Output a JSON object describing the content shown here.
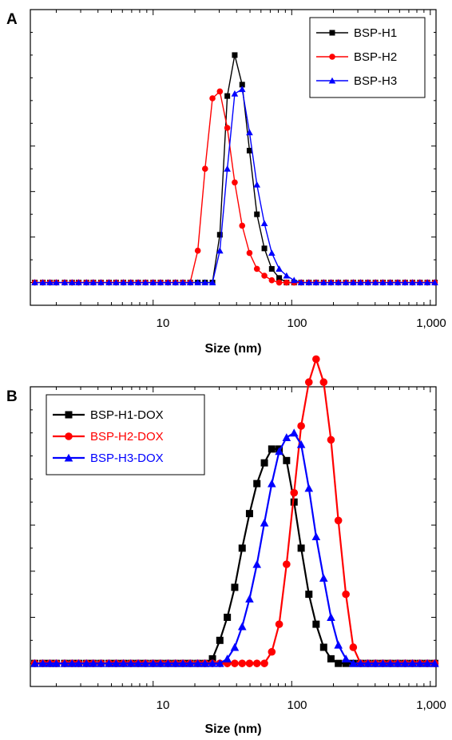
{
  "chart_data": [
    {
      "panel": "A",
      "type": "line",
      "xlabel": "Size (nm)",
      "ylabel": "",
      "xscale": "log",
      "xlim": [
        1.3,
        1100
      ],
      "xticks": [
        {
          "value": 10,
          "label": "10"
        },
        {
          "value": 100,
          "label": "100"
        },
        {
          "value": 1000,
          "label": "1,000"
        }
      ],
      "ylim": [
        -0.1,
        1.2
      ],
      "legend_position": "top-right",
      "legend_framed": true,
      "grid": false,
      "series": [
        {
          "name": "BSP-H1",
          "color": "#000000",
          "marker": "square",
          "x": [
            1.4,
            1.6,
            1.8,
            2.0,
            2.3,
            2.6,
            2.9,
            3.3,
            3.7,
            4.2,
            4.8,
            5.4,
            6.1,
            6.9,
            7.8,
            8.8,
            10,
            11.3,
            12.8,
            14.5,
            16.4,
            18.5,
            21,
            23.7,
            26.8,
            30.3,
            34.3,
            38.8,
            43.9,
            49.6,
            56.1,
            63.5,
            71.8,
            81.2,
            91.8,
            104,
            117,
            133,
            150,
            170,
            192,
            217,
            246,
            278,
            314,
            355,
            402,
            455,
            514,
            582,
            658,
            744,
            842,
            952,
            1077
          ],
          "values": [
            0,
            0,
            0,
            0,
            0,
            0,
            0,
            0,
            0,
            0,
            0,
            0,
            0,
            0,
            0,
            0,
            0,
            0,
            0,
            0,
            0,
            0,
            0,
            0,
            0,
            0.21,
            0.82,
            1.0,
            0.87,
            0.58,
            0.3,
            0.15,
            0.06,
            0.02,
            0,
            0,
            0,
            0,
            0,
            0,
            0,
            0,
            0,
            0,
            0,
            0,
            0,
            0,
            0,
            0,
            0,
            0,
            0,
            0,
            0
          ]
        },
        {
          "name": "BSP-H2",
          "color": "#ff0000",
          "marker": "circle",
          "x": [
            1.4,
            1.6,
            1.8,
            2.0,
            2.3,
            2.6,
            2.9,
            3.3,
            3.7,
            4.2,
            4.8,
            5.4,
            6.1,
            6.9,
            7.8,
            8.8,
            10,
            11.3,
            12.8,
            14.5,
            16.4,
            18.5,
            21,
            23.7,
            26.8,
            30.3,
            34.3,
            38.8,
            43.9,
            49.6,
            56.1,
            63.5,
            71.8,
            81.2,
            91.8,
            104,
            117,
            133,
            150,
            170,
            192,
            217,
            246,
            278,
            314,
            355,
            402,
            455,
            514,
            582,
            658,
            744,
            842,
            952,
            1077
          ],
          "values": [
            0,
            0,
            0,
            0,
            0,
            0,
            0,
            0,
            0,
            0,
            0,
            0,
            0,
            0,
            0,
            0,
            0,
            0,
            0,
            0,
            0,
            0,
            0.14,
            0.5,
            0.81,
            0.84,
            0.68,
            0.44,
            0.25,
            0.13,
            0.06,
            0.03,
            0.01,
            0,
            0,
            0,
            0,
            0,
            0,
            0,
            0,
            0,
            0,
            0,
            0,
            0,
            0,
            0,
            0,
            0,
            0,
            0,
            0,
            0,
            0
          ]
        },
        {
          "name": "BSP-H3",
          "color": "#0000ff",
          "marker": "triangle",
          "x": [
            1.4,
            1.6,
            1.8,
            2.0,
            2.3,
            2.6,
            2.9,
            3.3,
            3.7,
            4.2,
            4.8,
            5.4,
            6.1,
            6.9,
            7.8,
            8.8,
            10,
            11.3,
            12.8,
            14.5,
            16.4,
            18.5,
            21,
            23.7,
            26.8,
            30.3,
            34.3,
            38.8,
            43.9,
            49.6,
            56.1,
            63.5,
            71.8,
            81.2,
            91.8,
            104,
            117,
            133,
            150,
            170,
            192,
            217,
            246,
            278,
            314,
            355,
            402,
            455,
            514,
            582,
            658,
            744,
            842,
            952,
            1077
          ],
          "values": [
            0,
            0,
            0,
            0,
            0,
            0,
            0,
            0,
            0,
            0,
            0,
            0,
            0,
            0,
            0,
            0,
            0,
            0,
            0,
            0,
            0,
            0,
            0,
            0,
            0,
            0.14,
            0.5,
            0.83,
            0.85,
            0.66,
            0.43,
            0.26,
            0.13,
            0.06,
            0.03,
            0.01,
            0,
            0,
            0,
            0,
            0,
            0,
            0,
            0,
            0,
            0,
            0,
            0,
            0,
            0,
            0,
            0,
            0,
            0,
            0
          ]
        }
      ]
    },
    {
      "panel": "B",
      "type": "line",
      "xlabel": "Size (nm)",
      "ylabel": "",
      "xscale": "log",
      "xlim": [
        1.3,
        1100
      ],
      "xticks": [
        {
          "value": 10,
          "label": "10"
        },
        {
          "value": 100,
          "label": "100"
        },
        {
          "value": 1000,
          "label": "1,000"
        }
      ],
      "ylim": [
        -0.1,
        1.2
      ],
      "legend_position": "top-left",
      "legend_framed": true,
      "grid": false,
      "series": [
        {
          "name": "BSP-H1-DOX",
          "color": "#000000",
          "marker": "square",
          "x": [
            1.4,
            1.6,
            1.8,
            2.0,
            2.3,
            2.6,
            2.9,
            3.3,
            3.7,
            4.2,
            4.8,
            5.4,
            6.1,
            6.9,
            7.8,
            8.8,
            10,
            11.3,
            12.8,
            14.5,
            16.4,
            18.5,
            21,
            23.7,
            26.8,
            30.3,
            34.3,
            38.8,
            43.9,
            49.6,
            56.1,
            63.5,
            71.8,
            81.2,
            91.8,
            104,
            117,
            133,
            150,
            170,
            192,
            217,
            246,
            278,
            314,
            355,
            402,
            455,
            514,
            582,
            658,
            744,
            842,
            952,
            1077
          ],
          "values": [
            0,
            0,
            0,
            0,
            0,
            0,
            0,
            0,
            0,
            0,
            0,
            0,
            0,
            0,
            0,
            0,
            0,
            0,
            0,
            0,
            0,
            0,
            0,
            0,
            0.02,
            0.1,
            0.2,
            0.33,
            0.5,
            0.65,
            0.78,
            0.87,
            0.93,
            0.93,
            0.88,
            0.7,
            0.5,
            0.3,
            0.17,
            0.07,
            0.02,
            0,
            0,
            0,
            0,
            0,
            0,
            0,
            0,
            0,
            0,
            0,
            0,
            0,
            0
          ]
        },
        {
          "name": "BSP-H2-DOX",
          "color": "#ff0000",
          "marker": "circle",
          "x": [
            1.4,
            1.6,
            1.8,
            2.0,
            2.3,
            2.6,
            2.9,
            3.3,
            3.7,
            4.2,
            4.8,
            5.4,
            6.1,
            6.9,
            7.8,
            8.8,
            10,
            11.3,
            12.8,
            14.5,
            16.4,
            18.5,
            21,
            23.7,
            26.8,
            30.3,
            34.3,
            38.8,
            43.9,
            49.6,
            56.1,
            63.5,
            71.8,
            81.2,
            91.8,
            104,
            117,
            133,
            150,
            170,
            192,
            217,
            246,
            278,
            314,
            355,
            402,
            455,
            514,
            582,
            658,
            744,
            842,
            952,
            1077
          ],
          "values": [
            0,
            0,
            0,
            0,
            0,
            0,
            0,
            0,
            0,
            0,
            0,
            0,
            0,
            0,
            0,
            0,
            0,
            0,
            0,
            0,
            0,
            0,
            0,
            0,
            0,
            0,
            0,
            0,
            0,
            0,
            0,
            0,
            0.05,
            0.17,
            0.43,
            0.74,
            1.03,
            1.22,
            1.32,
            1.22,
            0.97,
            0.62,
            0.3,
            0.07,
            0,
            0,
            0,
            0,
            0,
            0,
            0,
            0,
            0,
            0,
            0
          ]
        },
        {
          "name": "BSP-H3-DOX",
          "color": "#0000ff",
          "marker": "triangle",
          "x": [
            1.4,
            1.6,
            1.8,
            2.0,
            2.3,
            2.6,
            2.9,
            3.3,
            3.7,
            4.2,
            4.8,
            5.4,
            6.1,
            6.9,
            7.8,
            8.8,
            10,
            11.3,
            12.8,
            14.5,
            16.4,
            18.5,
            21,
            23.7,
            26.8,
            30.3,
            34.3,
            38.8,
            43.9,
            49.6,
            56.1,
            63.5,
            71.8,
            81.2,
            91.8,
            104,
            117,
            133,
            150,
            170,
            192,
            217,
            246,
            278,
            314,
            355,
            402,
            455,
            514,
            582,
            658,
            744,
            842,
            952,
            1077
          ],
          "values": [
            0,
            0,
            0,
            0,
            0,
            0,
            0,
            0,
            0,
            0,
            0,
            0,
            0,
            0,
            0,
            0,
            0,
            0,
            0,
            0,
            0,
            0,
            0,
            0,
            0,
            0,
            0.02,
            0.07,
            0.16,
            0.28,
            0.43,
            0.61,
            0.78,
            0.92,
            0.98,
            1.0,
            0.95,
            0.76,
            0.55,
            0.37,
            0.2,
            0.08,
            0.02,
            0,
            0,
            0,
            0,
            0,
            0,
            0,
            0,
            0,
            0,
            0,
            0
          ]
        }
      ]
    }
  ]
}
